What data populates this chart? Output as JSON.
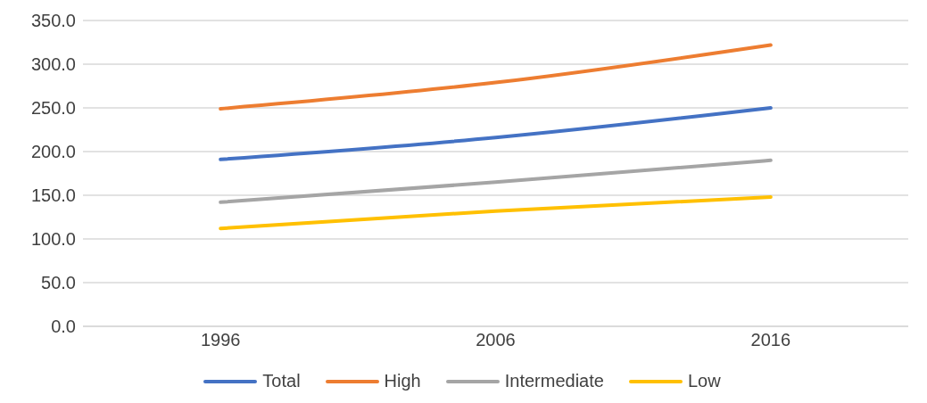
{
  "chart_data": {
    "type": "line",
    "categories": [
      "1996",
      "2006",
      "2016"
    ],
    "series": [
      {
        "name": "Total",
        "color": "#4472c4",
        "values": [
          191,
          216,
          250
        ]
      },
      {
        "name": "High",
        "color": "#ed7d31",
        "values": [
          249,
          279,
          322
        ]
      },
      {
        "name": "Intermediate",
        "color": "#a5a5a5",
        "values": [
          142,
          165,
          190
        ]
      },
      {
        "name": "Low",
        "color": "#ffc000",
        "values": [
          112,
          132,
          148
        ]
      }
    ],
    "ylim": [
      0,
      350
    ],
    "yticks": [
      {
        "value": 0,
        "label": "0.0"
      },
      {
        "value": 50,
        "label": "50.0"
      },
      {
        "value": 100,
        "label": "100.0"
      },
      {
        "value": 150,
        "label": "150.0"
      },
      {
        "value": 200,
        "label": "200.0"
      },
      {
        "value": 250,
        "label": "250.0"
      },
      {
        "value": 300,
        "label": "300.0"
      },
      {
        "value": 350,
        "label": "350.0"
      }
    ],
    "grid": "y",
    "legend": "bottom",
    "marker": "none",
    "line_style": "solid"
  }
}
